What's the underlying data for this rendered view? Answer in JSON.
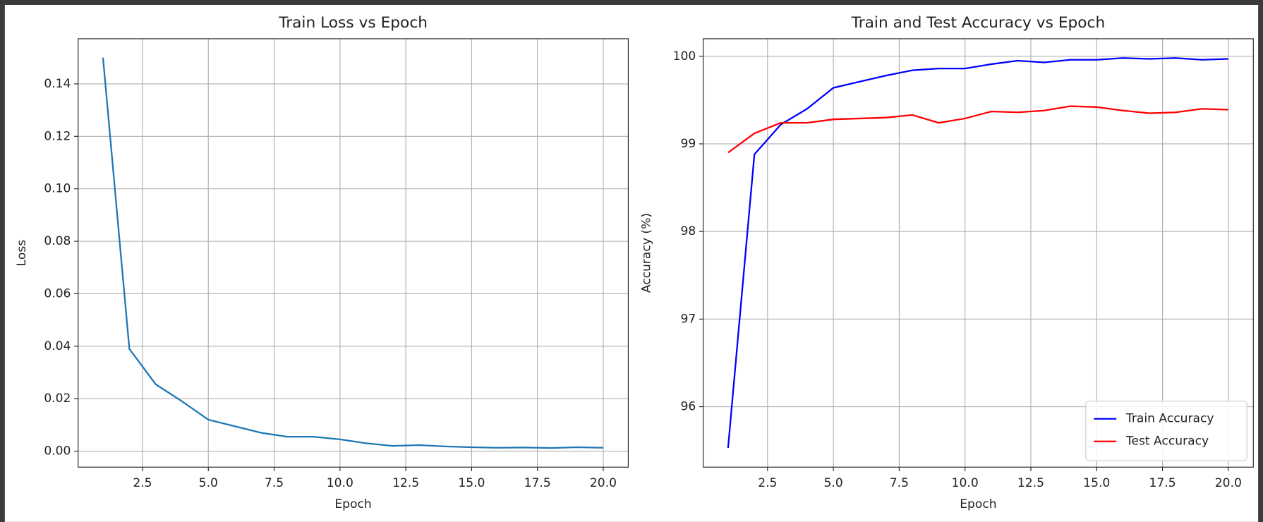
{
  "chart_data": [
    {
      "type": "line",
      "title": "Train Loss vs Epoch",
      "x_label": "Epoch",
      "y_label": "Loss",
      "x": [
        1,
        2,
        3,
        4,
        5,
        6,
        7,
        8,
        9,
        10,
        11,
        12,
        13,
        14,
        15,
        16,
        17,
        18,
        19,
        20
      ],
      "values": [
        0.15,
        0.039,
        0.0255,
        0.019,
        0.012,
        0.0095,
        0.007,
        0.0055,
        0.0055,
        0.0045,
        0.003,
        0.002,
        0.0023,
        0.0018,
        0.0015,
        0.0013,
        0.0014,
        0.0012,
        0.0015,
        0.0013
      ],
      "color": "#1f77b4",
      "xlim": [
        0.055,
        20.95
      ],
      "ylim": [
        -0.0061,
        0.1572
      ],
      "xticks": [
        {
          "value": 2.5,
          "label": "2.5"
        },
        {
          "value": 5,
          "label": "5.0"
        },
        {
          "value": 7.5,
          "label": "7.5"
        },
        {
          "value": 10,
          "label": "10.0"
        },
        {
          "value": 12.5,
          "label": "12.5"
        },
        {
          "value": 15,
          "label": "15.0"
        },
        {
          "value": 17.5,
          "label": "17.5"
        },
        {
          "value": 20,
          "label": "20.0"
        }
      ],
      "yticks": [
        {
          "value": 0,
          "label": "0.00"
        },
        {
          "value": 0.02,
          "label": "0.02"
        },
        {
          "value": 0.04,
          "label": "0.04"
        },
        {
          "value": 0.06,
          "label": "0.06"
        },
        {
          "value": 0.08,
          "label": "0.08"
        },
        {
          "value": 0.1,
          "label": "0.10"
        },
        {
          "value": 0.12,
          "label": "0.12"
        },
        {
          "value": 0.14,
          "label": "0.14"
        }
      ],
      "grid": true
    },
    {
      "type": "line",
      "title": "Train and Test Accuracy vs Epoch",
      "x_label": "Epoch",
      "y_label": "Accuracy (%)",
      "x": [
        1,
        2,
        3,
        4,
        5,
        6,
        7,
        8,
        9,
        10,
        11,
        12,
        13,
        14,
        15,
        16,
        17,
        18,
        19,
        20
      ],
      "series": [
        {
          "name": "Train Accuracy",
          "color": "#0000ff",
          "values": [
            95.53,
            98.88,
            99.22,
            99.4,
            99.64,
            99.71,
            99.78,
            99.84,
            99.86,
            99.86,
            99.91,
            99.95,
            99.93,
            99.96,
            99.96,
            99.98,
            99.97,
            99.98,
            99.96,
            99.97
          ]
        },
        {
          "name": "Test Accuracy",
          "color": "#ff0000",
          "values": [
            98.9,
            99.12,
            99.24,
            99.24,
            99.28,
            99.29,
            99.3,
            99.33,
            99.24,
            99.29,
            99.37,
            99.36,
            99.38,
            99.43,
            99.42,
            99.38,
            99.35,
            99.36,
            99.4,
            99.39
          ]
        }
      ],
      "xlim": [
        0.055,
        20.95
      ],
      "ylim": [
        95.31,
        100.2
      ],
      "xticks": [
        {
          "value": 2.5,
          "label": "2.5"
        },
        {
          "value": 5,
          "label": "5.0"
        },
        {
          "value": 7.5,
          "label": "7.5"
        },
        {
          "value": 10,
          "label": "10.0"
        },
        {
          "value": 12.5,
          "label": "12.5"
        },
        {
          "value": 15,
          "label": "15.0"
        },
        {
          "value": 17.5,
          "label": "17.5"
        },
        {
          "value": 20,
          "label": "20.0"
        }
      ],
      "yticks": [
        96,
        97,
        98,
        99,
        100
      ],
      "grid": true,
      "legend": "lower right"
    }
  ]
}
